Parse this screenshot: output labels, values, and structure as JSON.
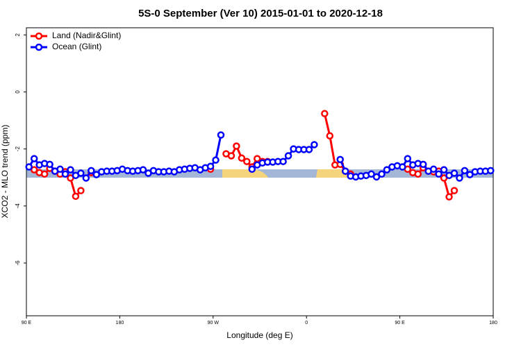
{
  "chart_data": {
    "type": "line",
    "title": "5S-0 September (Ver 10)   2015-01-01 to 2020-12-18",
    "x_label": "Longitude (deg E)",
    "y_label": "XCO2 - MLO trend (ppm)",
    "xlim": [
      90,
      540
    ],
    "ylim": [
      -7.85,
      2.25
    ],
    "xticks": [
      {
        "value": 90,
        "label": "90 E"
      },
      180,
      {
        "value": 270,
        "label": "90 W"
      },
      {
        "value": 360,
        "label": "0"
      },
      {
        "value": 450,
        "label": "90 E"
      },
      {
        "value": 540,
        "label": "180"
      }
    ],
    "yticks": [
      2,
      0,
      -2,
      -4,
      -6
    ],
    "legend": "top-left",
    "x": [
      92.5,
      97.5,
      102.5,
      107.5,
      112.5,
      117.5,
      122.5,
      127.5,
      132.5,
      137.5,
      142.5,
      147.5,
      152.5,
      157.5,
      162.5,
      167.5,
      172.5,
      177.5,
      182.5,
      187.5,
      192.5,
      197.5,
      202.5,
      207.5,
      212.5,
      217.5,
      222.5,
      227.5,
      232.5,
      237.5,
      242.5,
      247.5,
      252.5,
      257.5,
      262.5,
      267.5,
      272.5,
      277.5,
      282.5,
      287.5,
      292.5,
      297.5,
      302.5,
      307.5,
      312.5,
      317.5,
      322.5,
      327.5,
      332.5,
      337.5,
      342.5,
      347.5,
      352.5,
      357.5,
      362.5,
      367.5,
      372.5,
      377.5,
      382.5,
      387.5,
      392.5,
      397.5,
      402.5,
      407.5,
      412.5,
      417.5,
      422.5,
      427.5,
      432.5,
      437.5,
      442.5,
      447.5,
      452.5,
      457.5,
      462.5,
      467.5,
      472.5,
      477.5,
      482.5,
      487.5,
      492.5,
      497.5,
      502.5,
      507.5,
      512.5,
      517.5,
      522.5,
      527.5,
      532.5,
      537.5
    ],
    "series": [
      {
        "name": "Land (Nadir&Glint)",
        "color": "#ff0000",
        "values": [
          null,
          -2.73,
          -2.83,
          -2.88,
          -2.68,
          -2.78,
          -2.88,
          -2.8,
          -3.02,
          -3.66,
          -3.46,
          null,
          -2.83,
          null,
          null,
          null,
          null,
          null,
          null,
          null,
          null,
          null,
          null,
          null,
          null,
          null,
          null,
          null,
          null,
          null,
          null,
          null,
          null,
          null,
          null,
          -2.71,
          null,
          null,
          -2.17,
          -2.24,
          -1.9,
          -2.32,
          -2.44,
          -2.63,
          -2.34,
          -2.44,
          -2.44,
          null,
          null,
          null,
          null,
          null,
          null,
          null,
          null,
          null,
          null,
          -0.76,
          -1.54,
          -2.56,
          -2.54,
          -2.78,
          -2.88,
          null,
          null,
          null,
          null,
          null,
          null,
          null,
          null,
          null,
          null,
          -2.71,
          -2.83,
          -2.88,
          -2.66,
          -2.78,
          -2.8,
          -2.78,
          -3.02,
          -3.68,
          -3.46,
          null,
          null,
          null,
          null,
          null,
          null,
          null
        ]
      },
      {
        "name": "Ocean (Glint)",
        "color": "#0000ff",
        "values": [
          -2.63,
          -2.34,
          -2.56,
          -2.51,
          -2.54,
          -2.78,
          -2.71,
          -2.88,
          -2.73,
          -2.93,
          -2.85,
          -3.02,
          -2.76,
          -2.9,
          -2.8,
          -2.78,
          -2.78,
          -2.76,
          -2.71,
          -2.76,
          -2.78,
          -2.76,
          -2.73,
          -2.85,
          -2.76,
          -2.8,
          -2.8,
          -2.78,
          -2.8,
          -2.73,
          -2.71,
          -2.68,
          -2.66,
          -2.73,
          -2.66,
          -2.61,
          -2.39,
          -1.51,
          null,
          null,
          null,
          null,
          null,
          -2.71,
          -2.56,
          -2.49,
          -2.46,
          -2.46,
          -2.44,
          -2.44,
          -2.24,
          -2.0,
          -2.02,
          -2.02,
          -2.02,
          -1.85,
          null,
          null,
          null,
          null,
          -2.37,
          -2.78,
          -2.95,
          -2.98,
          -2.95,
          -2.93,
          -2.88,
          -2.98,
          -2.88,
          -2.73,
          -2.63,
          -2.59,
          -2.63,
          -2.34,
          -2.56,
          -2.51,
          -2.54,
          -2.78,
          -2.71,
          -2.88,
          -2.73,
          -2.93,
          -2.85,
          -3.02,
          -2.76,
          -2.9,
          -2.8,
          -2.78,
          -2.78,
          -2.76
        ]
      }
    ]
  }
}
